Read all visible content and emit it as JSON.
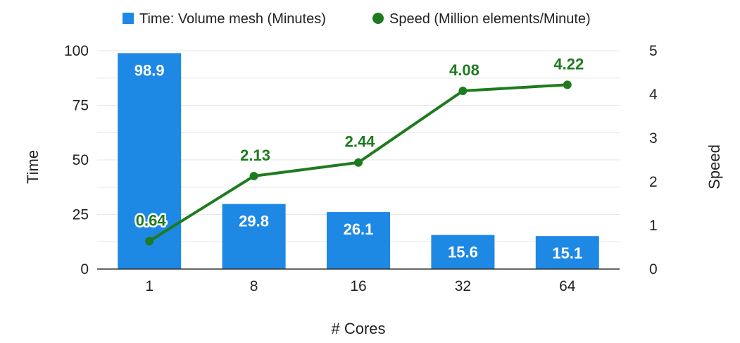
{
  "chart_data": {
    "type": "bar",
    "categories": [
      "1",
      "8",
      "16",
      "32",
      "64"
    ],
    "xlabel": "# Cores",
    "ylabel": "Time",
    "y2label": "Speed",
    "ylim": [
      0,
      100
    ],
    "y2lim": [
      0,
      5
    ],
    "yticks": [
      "0",
      "25",
      "50",
      "75",
      "100"
    ],
    "y2ticks": [
      "0",
      "1",
      "2",
      "3",
      "4",
      "5"
    ],
    "legend_position": "top",
    "grid": true,
    "series": [
      {
        "name": "Time: Volume mesh (Minutes)",
        "type": "bar",
        "axis": "left",
        "color": "#1e88e5",
        "values": [
          98.9,
          29.8,
          26.1,
          15.6,
          15.1
        ],
        "labels": [
          "98.9",
          "29.8",
          "26.1",
          "15.6",
          "15.1"
        ]
      },
      {
        "name": "Speed (Million elements/Minute)",
        "type": "line",
        "axis": "right",
        "color": "#1e7b1e",
        "values": [
          0.64,
          2.13,
          2.44,
          4.08,
          4.22
        ],
        "labels": [
          "0.64",
          "2.13",
          "2.44",
          "4.08",
          "4.22"
        ]
      }
    ]
  }
}
